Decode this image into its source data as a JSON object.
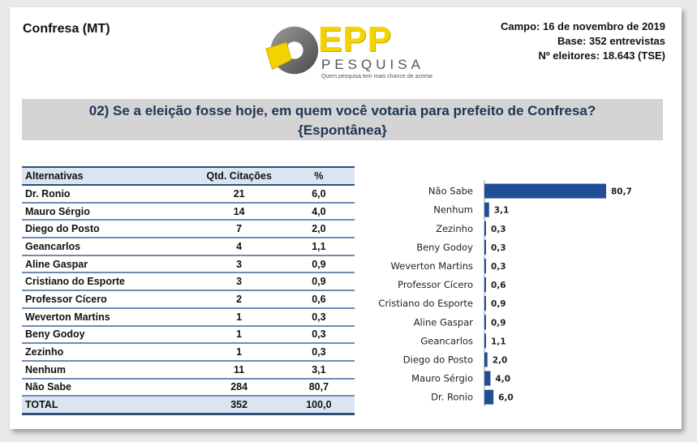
{
  "header": {
    "city": "Confresa (MT)",
    "campo": "Campo: 16 de novembro de 2019",
    "base": "Base: 352 entrevistas",
    "eleitores": "Nº eleitores: 18.643 (TSE)"
  },
  "logo": {
    "title": "EPP",
    "subtitle": "PESQUISA",
    "tagline": "Quem pesquisa tem mais chance de acertar"
  },
  "question": {
    "line1": "02) Se a eleição fosse hoje, em quem você votaria para prefeito de Confresa?",
    "line2": "{Espontânea}"
  },
  "table": {
    "headers": [
      "Alternativas",
      "Qtd. Citações",
      "%"
    ],
    "rows": [
      {
        "name": "Dr. Ronio",
        "qtd": "21",
        "pct": "6,0"
      },
      {
        "name": "Mauro Sérgio",
        "qtd": "14",
        "pct": "4,0"
      },
      {
        "name": "Diego do Posto",
        "qtd": "7",
        "pct": "2,0"
      },
      {
        "name": "Geancarlos",
        "qtd": "4",
        "pct": "1,1"
      },
      {
        "name": "Aline Gaspar",
        "qtd": "3",
        "pct": "0,9"
      },
      {
        "name": "Cristiano do Esporte",
        "qtd": "3",
        "pct": "0,9"
      },
      {
        "name": "Professor Cícero",
        "qtd": "2",
        "pct": "0,6"
      },
      {
        "name": "Weverton Martins",
        "qtd": "1",
        "pct": "0,3"
      },
      {
        "name": "Beny Godoy",
        "qtd": "1",
        "pct": "0,3"
      },
      {
        "name": "Zezinho",
        "qtd": "1",
        "pct": "0,3"
      },
      {
        "name": "Nenhum",
        "qtd": "11",
        "pct": "3,1"
      },
      {
        "name": "Não Sabe",
        "qtd": "284",
        "pct": "80,7"
      }
    ],
    "total": {
      "name": "TOTAL",
      "qtd": "352",
      "pct": "100,0"
    }
  },
  "chart_data": {
    "type": "bar",
    "orientation": "horizontal",
    "categories": [
      "Não Sabe",
      "Nenhum",
      "Zezinho",
      "Beny Godoy",
      "Weverton Martins",
      "Professor Cícero",
      "Cristiano do Esporte",
      "Aline Gaspar",
      "Geancarlos",
      "Diego do Posto",
      "Mauro Sérgio",
      "Dr. Ronio"
    ],
    "values": [
      80.7,
      3.1,
      0.3,
      0.3,
      0.3,
      0.6,
      0.9,
      0.9,
      1.1,
      2.0,
      4.0,
      6.0
    ],
    "value_labels": [
      "80,7",
      "3,1",
      "0,3",
      "0,3",
      "0,3",
      "0,6",
      "0,9",
      "0,9",
      "1,1",
      "2,0",
      "4,0",
      "6,0"
    ],
    "xlim": [
      0,
      80.7
    ],
    "grid": false,
    "bar_color": "#1f4e96"
  }
}
